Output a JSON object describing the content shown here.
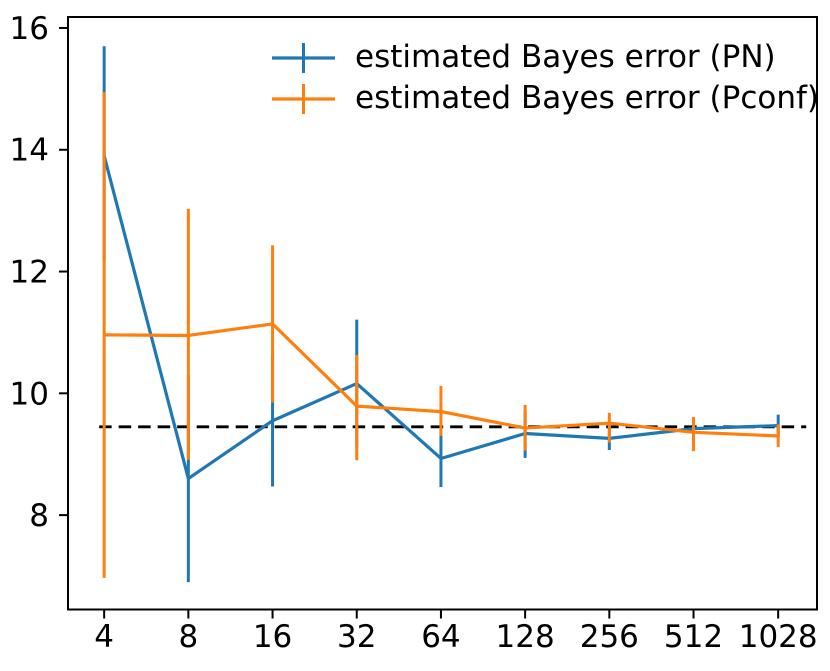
{
  "chart_data": {
    "type": "line",
    "title": "",
    "xlabel": "",
    "ylabel": "",
    "x_scale": "log",
    "grid": false,
    "x": [
      4,
      8,
      16,
      32,
      64,
      128,
      256,
      512,
      1028
    ],
    "x_tick_labels": [
      "4",
      "8",
      "16",
      "32",
      "64",
      "128",
      "256",
      "512",
      "1028"
    ],
    "yticks": [
      8,
      10,
      12,
      14,
      16
    ],
    "y_tick_labels": [
      "8",
      "10",
      "12",
      "14",
      "16"
    ],
    "xlim": [
      2.97,
      1415
    ],
    "ylim": [
      6.45,
      16.18
    ],
    "axis_color": "#000000",
    "legend_position": "upper right",
    "legend_frame": false,
    "series": [
      {
        "name": "estimated Bayes error (PN)",
        "color": "#1f77b4",
        "values": [
          13.9,
          8.6,
          9.55,
          10.16,
          8.93,
          9.34,
          9.26,
          9.42,
          9.47
        ],
        "err_low": [
          12.18,
          6.9,
          8.47,
          9.11,
          8.46,
          8.94,
          9.07,
          9.26,
          9.28
        ],
        "err_high": [
          15.7,
          10.3,
          10.63,
          11.21,
          9.37,
          9.71,
          9.46,
          9.59,
          9.65
        ]
      },
      {
        "name": "estimated Bayes error (Pconf)",
        "color": "#ff7f0e",
        "values": [
          10.96,
          10.95,
          11.14,
          9.79,
          9.7,
          9.43,
          9.51,
          9.36,
          9.3
        ],
        "err_low": [
          6.97,
          8.91,
          9.85,
          8.9,
          9.3,
          9.06,
          9.19,
          9.05,
          9.12
        ],
        "err_high": [
          14.95,
          13.03,
          12.43,
          10.63,
          10.12,
          9.81,
          9.68,
          9.61,
          9.49
        ]
      }
    ],
    "reference_line": {
      "value": 9.45,
      "color": "#000000",
      "style": "dashed"
    }
  }
}
